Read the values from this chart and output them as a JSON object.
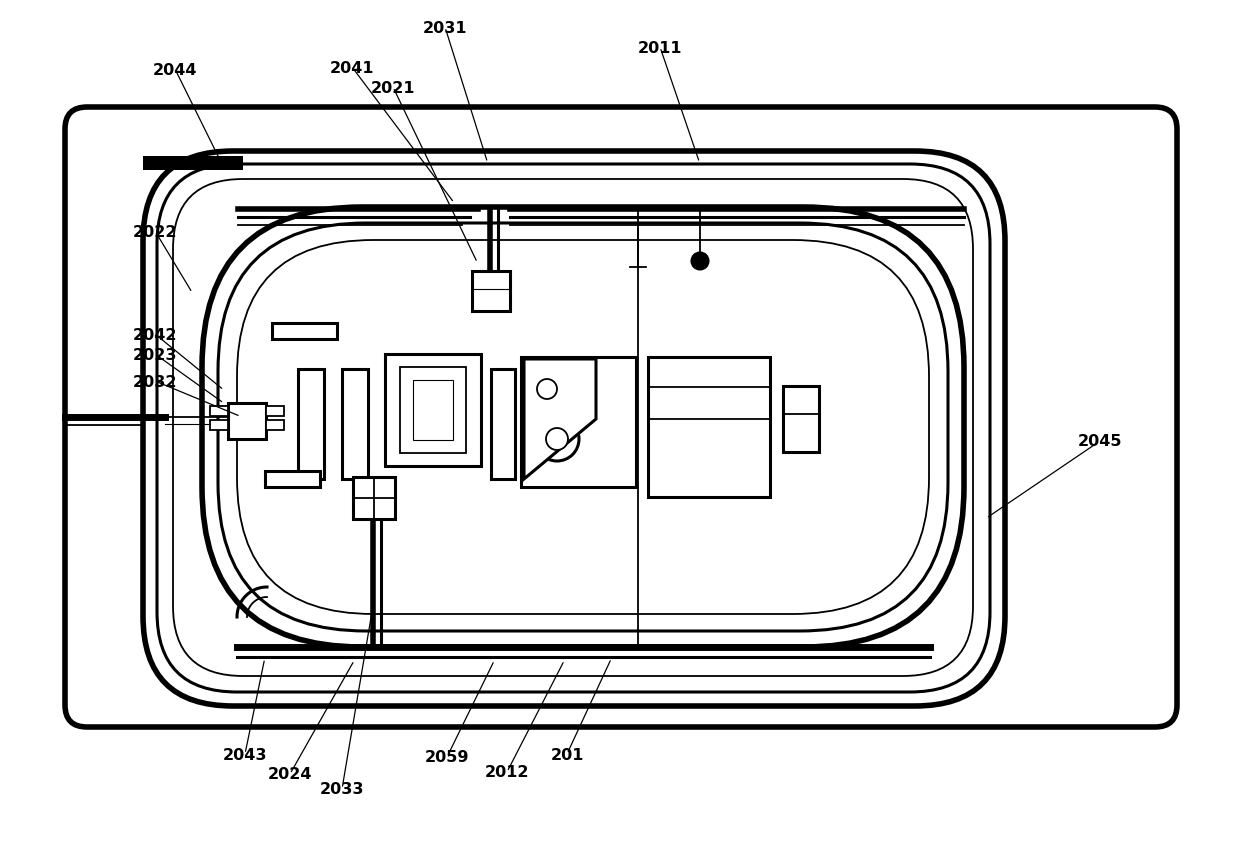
{
  "bg_color": "#ffffff",
  "lc": "#000000",
  "lw_thick": 4.0,
  "lw_med": 2.2,
  "lw_thin": 1.3,
  "lw_vt": 0.8,
  "labels": [
    [
      "2044",
      175,
      70,
      222,
      165
    ],
    [
      "2041",
      352,
      68,
      455,
      205
    ],
    [
      "2031",
      445,
      28,
      488,
      165
    ],
    [
      "2021",
      393,
      88,
      478,
      265
    ],
    [
      "2011",
      660,
      48,
      700,
      165
    ],
    [
      "2022",
      155,
      232,
      193,
      295
    ],
    [
      "2042",
      155,
      335,
      225,
      392
    ],
    [
      "2023",
      155,
      355,
      225,
      405
    ],
    [
      "2032",
      155,
      382,
      242,
      418
    ],
    [
      "2043",
      245,
      755,
      265,
      658
    ],
    [
      "2024",
      290,
      775,
      355,
      660
    ],
    [
      "2033",
      342,
      790,
      375,
      595
    ],
    [
      "2059",
      447,
      758,
      495,
      660
    ],
    [
      "2012",
      507,
      773,
      565,
      660
    ],
    [
      "201",
      567,
      755,
      612,
      658
    ],
    [
      "2045",
      1100,
      442,
      985,
      520
    ]
  ]
}
